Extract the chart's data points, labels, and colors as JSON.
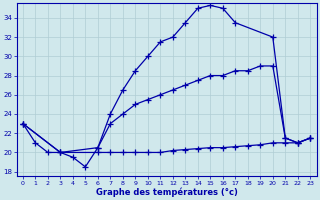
{
  "xlabel": "Graphe des températures (°c)",
  "bg_color": "#d0e8ec",
  "line_color": "#0000aa",
  "grid_color": "#b0cdd4",
  "xlim": [
    -0.5,
    23.5
  ],
  "ylim": [
    17.5,
    35.5
  ],
  "yticks": [
    18,
    20,
    22,
    24,
    26,
    28,
    30,
    32,
    34
  ],
  "xticks": [
    0,
    1,
    2,
    3,
    4,
    5,
    6,
    7,
    8,
    9,
    10,
    11,
    12,
    13,
    14,
    15,
    16,
    17,
    18,
    19,
    20,
    21,
    22,
    23
  ],
  "line1_x": [
    0,
    1,
    2,
    3,
    4,
    5,
    6,
    7,
    8,
    9,
    10,
    11,
    12,
    13,
    14,
    15,
    16,
    17,
    20,
    21,
    22,
    23
  ],
  "line1_y": [
    23.0,
    21.0,
    20.0,
    20.0,
    19.5,
    18.5,
    20.5,
    24.0,
    26.5,
    28.5,
    30.0,
    31.5,
    32.0,
    33.5,
    35.0,
    35.3,
    35.0,
    33.5,
    32.0,
    21.5,
    21.0,
    21.5
  ],
  "line2_x": [
    0,
    3,
    6,
    7,
    8,
    9,
    10,
    11,
    12,
    13,
    14,
    15,
    16,
    17,
    18,
    19,
    20,
    21,
    22,
    23
  ],
  "line2_y": [
    23.0,
    20.0,
    20.5,
    23.0,
    24.0,
    25.0,
    25.5,
    26.0,
    26.5,
    27.0,
    27.5,
    28.0,
    28.0,
    28.5,
    28.5,
    29.0,
    29.0,
    21.5,
    21.0,
    21.5
  ],
  "line3_x": [
    0,
    3,
    6,
    7,
    8,
    9,
    10,
    11,
    12,
    13,
    14,
    15,
    16,
    17,
    18,
    19,
    20,
    21,
    22,
    23
  ],
  "line3_y": [
    23.0,
    20.0,
    20.0,
    20.0,
    20.0,
    20.0,
    20.0,
    20.0,
    20.2,
    20.3,
    20.4,
    20.5,
    20.5,
    20.6,
    20.7,
    20.8,
    21.0,
    21.0,
    21.0,
    21.5
  ]
}
